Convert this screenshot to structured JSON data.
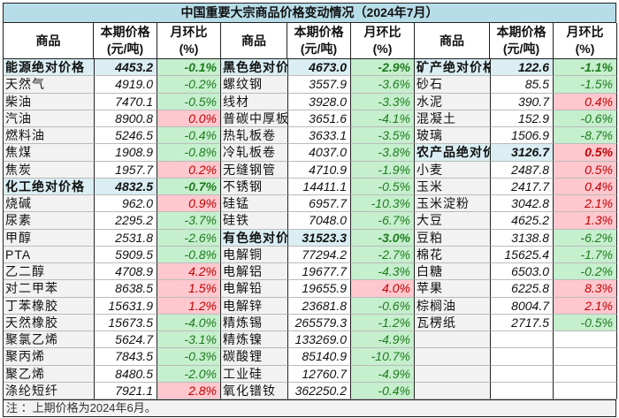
{
  "title": "中国重要大宗商品价格变动情况（2024年7月）",
  "headers": {
    "name": "商品",
    "price": "本期价格\n(元/吨)",
    "change": "月环比\n(%)"
  },
  "note": "注 ：上期价格为2024年6月。",
  "colors": {
    "up_bg": "#ffc7ce",
    "up_text": "#c00000",
    "down_bg": "#c6efce",
    "down_text": "#1e7b1e",
    "category_bg": "#daeef3",
    "title_bg": "#b7dde8"
  },
  "groups": [
    {
      "rows": [
        {
          "name": "能源绝对价格",
          "price": "4453.2",
          "change": "-0.1%",
          "category": true
        },
        {
          "name": "天然气",
          "price": "4919.0",
          "change": "-0.2%"
        },
        {
          "name": "柴油",
          "price": "7470.1",
          "change": "-0.5%"
        },
        {
          "name": "汽油",
          "price": "8900.8",
          "change": "0.0%"
        },
        {
          "name": "燃料油",
          "price": "5246.5",
          "change": "-0.4%"
        },
        {
          "name": "焦煤",
          "price": "1908.9",
          "change": "-0.8%"
        },
        {
          "name": "焦炭",
          "price": "1957.7",
          "change": "0.2%"
        },
        {
          "name": "化工绝对价格",
          "price": "4832.5",
          "change": "-0.7%",
          "category": true
        },
        {
          "name": "烧碱",
          "price": "962.0",
          "change": "0.9%"
        },
        {
          "name": "尿素",
          "price": "2295.2",
          "change": "-3.7%"
        },
        {
          "name": "甲醇",
          "price": "2531.8",
          "change": "-2.6%"
        },
        {
          "name": "PTA",
          "price": "5909.5",
          "change": "-0.8%"
        },
        {
          "name": "乙二醇",
          "price": "4708.9",
          "change": "4.2%"
        },
        {
          "name": "对二甲苯",
          "price": "8638.5",
          "change": "1.5%"
        },
        {
          "name": "丁苯橡胶",
          "price": "15631.9",
          "change": "1.2%"
        },
        {
          "name": "天然橡胶",
          "price": "15673.5",
          "change": "-4.0%"
        },
        {
          "name": "聚氯乙烯",
          "price": "5624.7",
          "change": "-3.1%"
        },
        {
          "name": "聚丙烯",
          "price": "7843.5",
          "change": "-0.3%"
        },
        {
          "name": "聚乙烯",
          "price": "8480.5",
          "change": "-2.0%"
        },
        {
          "name": "涤纶短纤",
          "price": "7921.1",
          "change": "2.8%"
        }
      ]
    },
    {
      "rows": [
        {
          "name": "黑色绝对价",
          "price": "4673.0",
          "change": "-2.9%",
          "category": true
        },
        {
          "name": "螺纹钢",
          "price": "3557.9",
          "change": "-3.6%"
        },
        {
          "name": "线材",
          "price": "3928.0",
          "change": "-3.3%"
        },
        {
          "name": "普碳中厚板",
          "price": "3651.6",
          "change": "-4.1%"
        },
        {
          "name": "热轧板卷",
          "price": "3633.1",
          "change": "-3.5%"
        },
        {
          "name": "冷轧板卷",
          "price": "4037.0",
          "change": "-3.8%"
        },
        {
          "name": "无缝钢管",
          "price": "4710.9",
          "change": "-1.9%"
        },
        {
          "name": "不锈钢",
          "price": "14411.1",
          "change": "-0.5%"
        },
        {
          "name": "硅锰",
          "price": "6957.7",
          "change": "-10.3%"
        },
        {
          "name": "硅铁",
          "price": "7048.0",
          "change": "-6.7%"
        },
        {
          "name": "有色绝对价",
          "price": "31523.3",
          "change": "-3.0%",
          "category": true
        },
        {
          "name": "电解铜",
          "price": "77294.2",
          "change": "-2.7%"
        },
        {
          "name": "电解铝",
          "price": "19677.7",
          "change": "-4.3%"
        },
        {
          "name": "电解铅",
          "price": "19655.9",
          "change": "4.0%"
        },
        {
          "name": "电解锌",
          "price": "23681.8",
          "change": "-0.6%"
        },
        {
          "name": "精炼锡",
          "price": "265579.3",
          "change": "-1.2%"
        },
        {
          "name": "精炼镍",
          "price": "133269.0",
          "change": "-4.9%"
        },
        {
          "name": "碳酸锂",
          "price": "85140.9",
          "change": "-10.7%"
        },
        {
          "name": "工业硅",
          "price": "12760.7",
          "change": "-4.9%"
        },
        {
          "name": "氧化镨钕",
          "price": "362250.2",
          "change": "-0.4%"
        }
      ]
    },
    {
      "rows": [
        {
          "name": "矿产绝对价格",
          "price": "122.6",
          "change": "-1.1%",
          "category": true
        },
        {
          "name": "砂石",
          "price": "85.5",
          "change": "-1.5%"
        },
        {
          "name": "水泥",
          "price": "390.7",
          "change": "0.4%"
        },
        {
          "name": "混凝土",
          "price": "152.9",
          "change": "-0.6%"
        },
        {
          "name": "玻璃",
          "price": "1506.9",
          "change": "-8.7%"
        },
        {
          "name": "农产品绝对价",
          "price": "3126.7",
          "change": "0.5%",
          "category": true
        },
        {
          "name": "小麦",
          "price": "2487.8",
          "change": "0.5%"
        },
        {
          "name": "玉米",
          "price": "2417.7",
          "change": "0.4%"
        },
        {
          "name": "玉米淀粉",
          "price": "3042.8",
          "change": "2.1%"
        },
        {
          "name": "大豆",
          "price": "4625.2",
          "change": "1.3%"
        },
        {
          "name": "豆粕",
          "price": "3138.8",
          "change": "-6.2%"
        },
        {
          "name": "棉花",
          "price": "15625.4",
          "change": "-1.7%"
        },
        {
          "name": "白糖",
          "price": "6503.0",
          "change": "-0.2%"
        },
        {
          "name": "苹果",
          "price": "6225.8",
          "change": "8.3%"
        },
        {
          "name": "棕榈油",
          "price": "8004.7",
          "change": "2.1%"
        },
        {
          "name": "瓦楞纸",
          "price": "2717.5",
          "change": "-0.5%"
        }
      ]
    }
  ]
}
